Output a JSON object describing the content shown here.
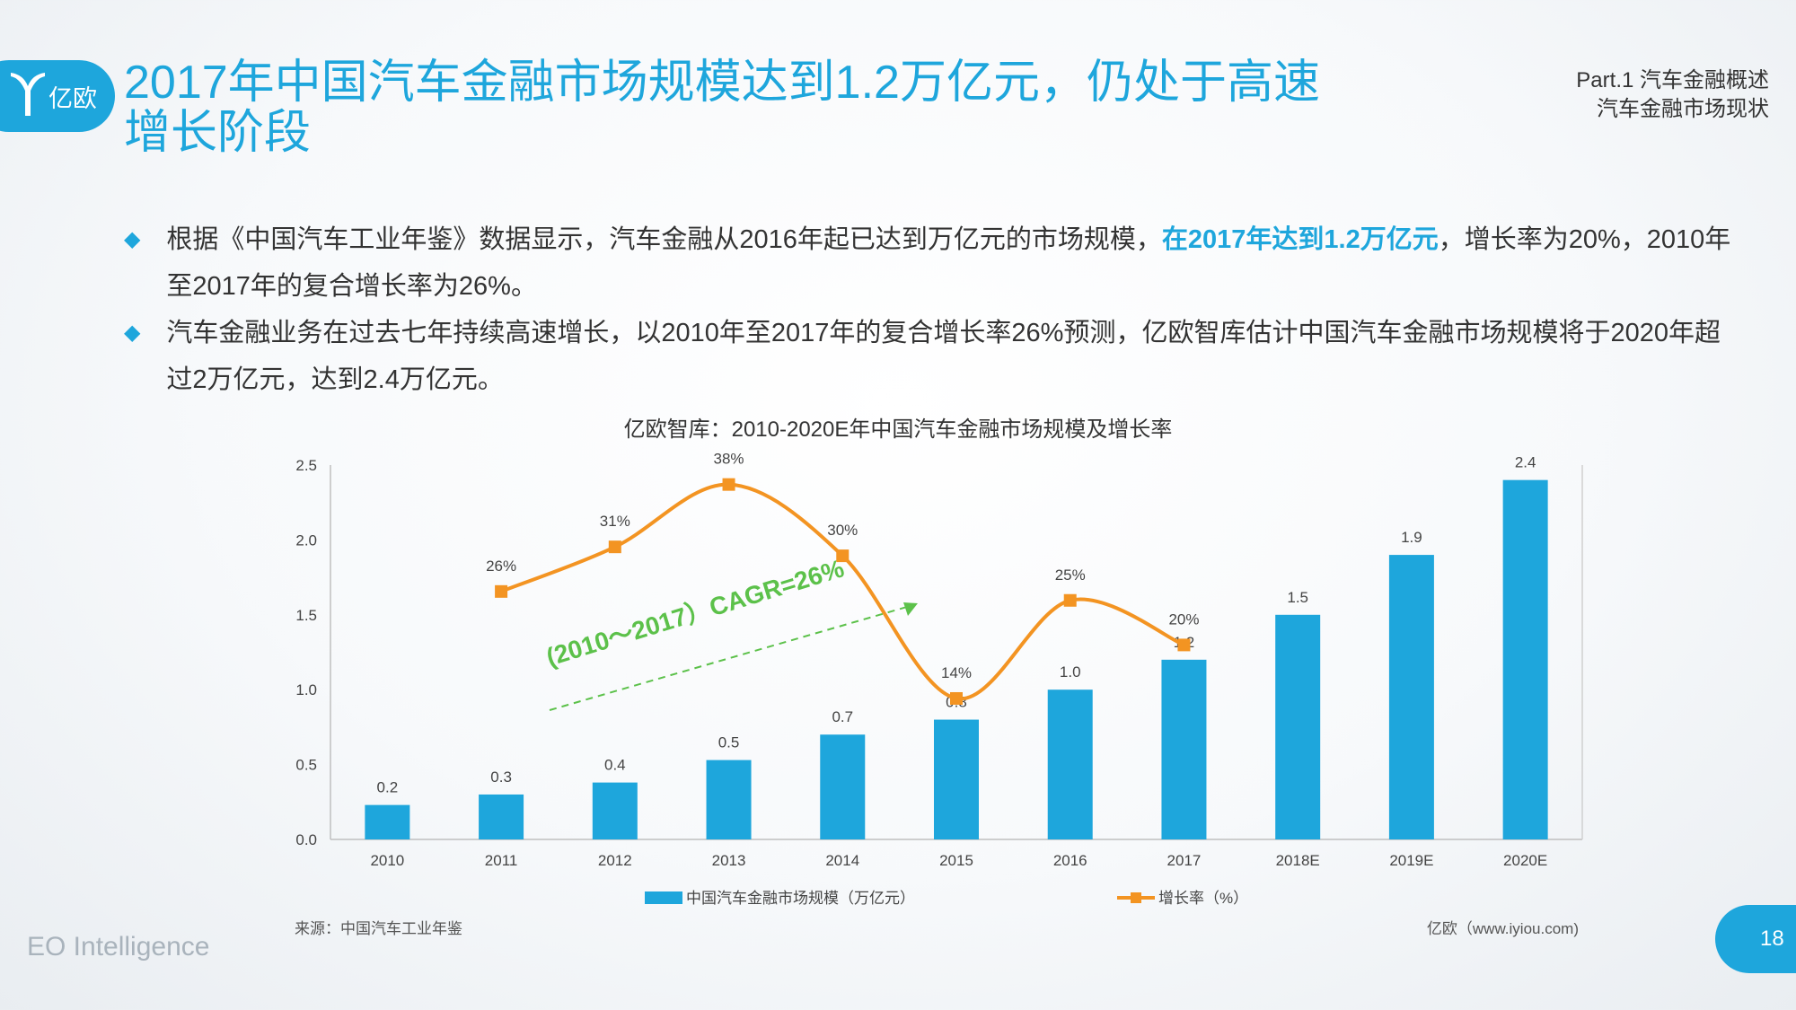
{
  "brand": {
    "logo_text": "亿欧",
    "footer": "EO Intelligence"
  },
  "header": {
    "title": "2017年中国汽车金融市场规模达到1.2万亿元，仍处于高速增长阶段",
    "section_line1": "Part.1 汽车金融概述",
    "section_line2": "汽车金融市场现状"
  },
  "bullets": {
    "b1_pre": "根据《中国汽车工业年鉴》数据显示，汽车金融从2016年起已达到万亿元的市场规模，",
    "b1_hl": "在2017年达到1.2万亿元",
    "b1_post": "，增长率为20%，2010年至2017年的复合增长率为26%。",
    "b2": "汽车金融业务在过去七年持续高速增长，以2010年至2017年的复合增长率26%预测，亿欧智库估计中国汽车金融市场规模将于2020年超过2万亿元，达到2.4万亿元。"
  },
  "chart_data": {
    "type": "bar",
    "title": "亿欧智库：2010-2020E年中国汽车金融市场规模及增长率",
    "categories": [
      "2010",
      "2011",
      "2012",
      "2013",
      "2014",
      "2015",
      "2016",
      "2017",
      "2018E",
      "2019E",
      "2020E"
    ],
    "series": [
      {
        "name": "中国汽车金融市场规模（万亿元）",
        "type": "bar",
        "color": "#1ea6dc",
        "values": [
          0.23,
          0.3,
          0.38,
          0.53,
          0.7,
          0.8,
          1.0,
          1.2,
          1.5,
          1.9,
          2.4
        ],
        "labels": [
          "0.2",
          "0.3",
          "0.4",
          "0.5",
          "0.7",
          "0.8",
          "1.0",
          "1.2",
          "1.5",
          "1.9",
          "2.4"
        ]
      },
      {
        "name": "增长率（%）",
        "type": "line",
        "color": "#f39422",
        "values": [
          null,
          26,
          31,
          38,
          30,
          14,
          25,
          20,
          null,
          null,
          null
        ],
        "labels": [
          "",
          "26%",
          "31%",
          "38%",
          "30%",
          "14%",
          "25%",
          "20%",
          "",
          "",
          ""
        ]
      }
    ],
    "yticks": [
      "0.0",
      "0.5",
      "1.0",
      "1.5",
      "2.0",
      "2.5"
    ],
    "ylim": [
      0,
      2.5
    ],
    "annotation": "(2010～2017）CAGR=26%",
    "annotation_color": "#5cc14a",
    "legend_position": "bottom"
  },
  "footer": {
    "source": "来源：中国汽车工业年鉴",
    "site": "亿欧（www.iyiou.com)",
    "page": "18"
  }
}
